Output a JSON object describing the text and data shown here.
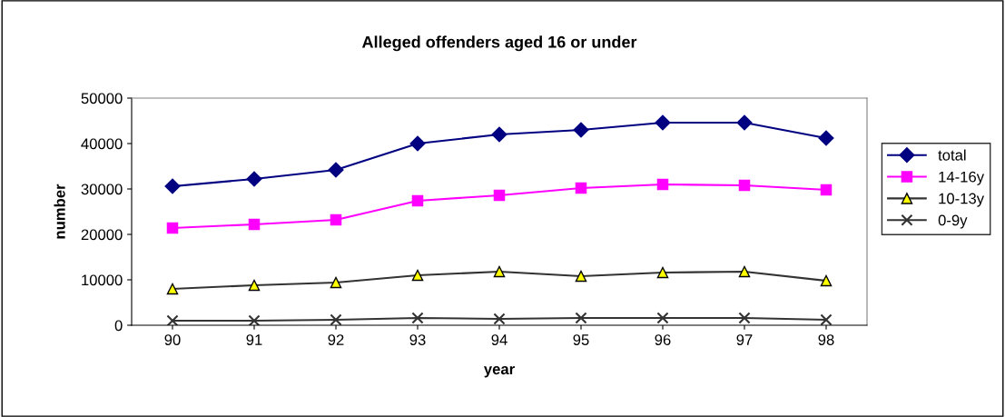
{
  "chart_data": {
    "type": "line",
    "title": "Alleged offenders aged 16 or under",
    "xlabel": "year",
    "ylabel": "number",
    "categories": [
      "90",
      "91",
      "92",
      "93",
      "94",
      "95",
      "96",
      "97",
      "98"
    ],
    "ylim": [
      0,
      50000
    ],
    "yticks": [
      0,
      10000,
      20000,
      30000,
      40000,
      50000
    ],
    "grid": false,
    "legend": "right",
    "series": [
      {
        "name": "total",
        "color": "#000080",
        "marker": "diamond",
        "values": [
          30600,
          32200,
          34200,
          40000,
          42000,
          43000,
          44600,
          44600,
          41200
        ]
      },
      {
        "name": "14-16y",
        "color": "#ff00ff",
        "marker": "square",
        "values": [
          21400,
          22200,
          23200,
          27400,
          28600,
          30200,
          31000,
          30800,
          29800
        ]
      },
      {
        "name": "10-13y",
        "color": "#333333",
        "marker": "triangle",
        "values": [
          8000,
          8800,
          9400,
          11000,
          11800,
          10800,
          11600,
          11800,
          9800
        ]
      },
      {
        "name": "0-9y",
        "color": "#333333",
        "marker": "cross",
        "values": [
          1000,
          1000,
          1200,
          1600,
          1400,
          1600,
          1600,
          1600,
          1200
        ]
      }
    ]
  }
}
